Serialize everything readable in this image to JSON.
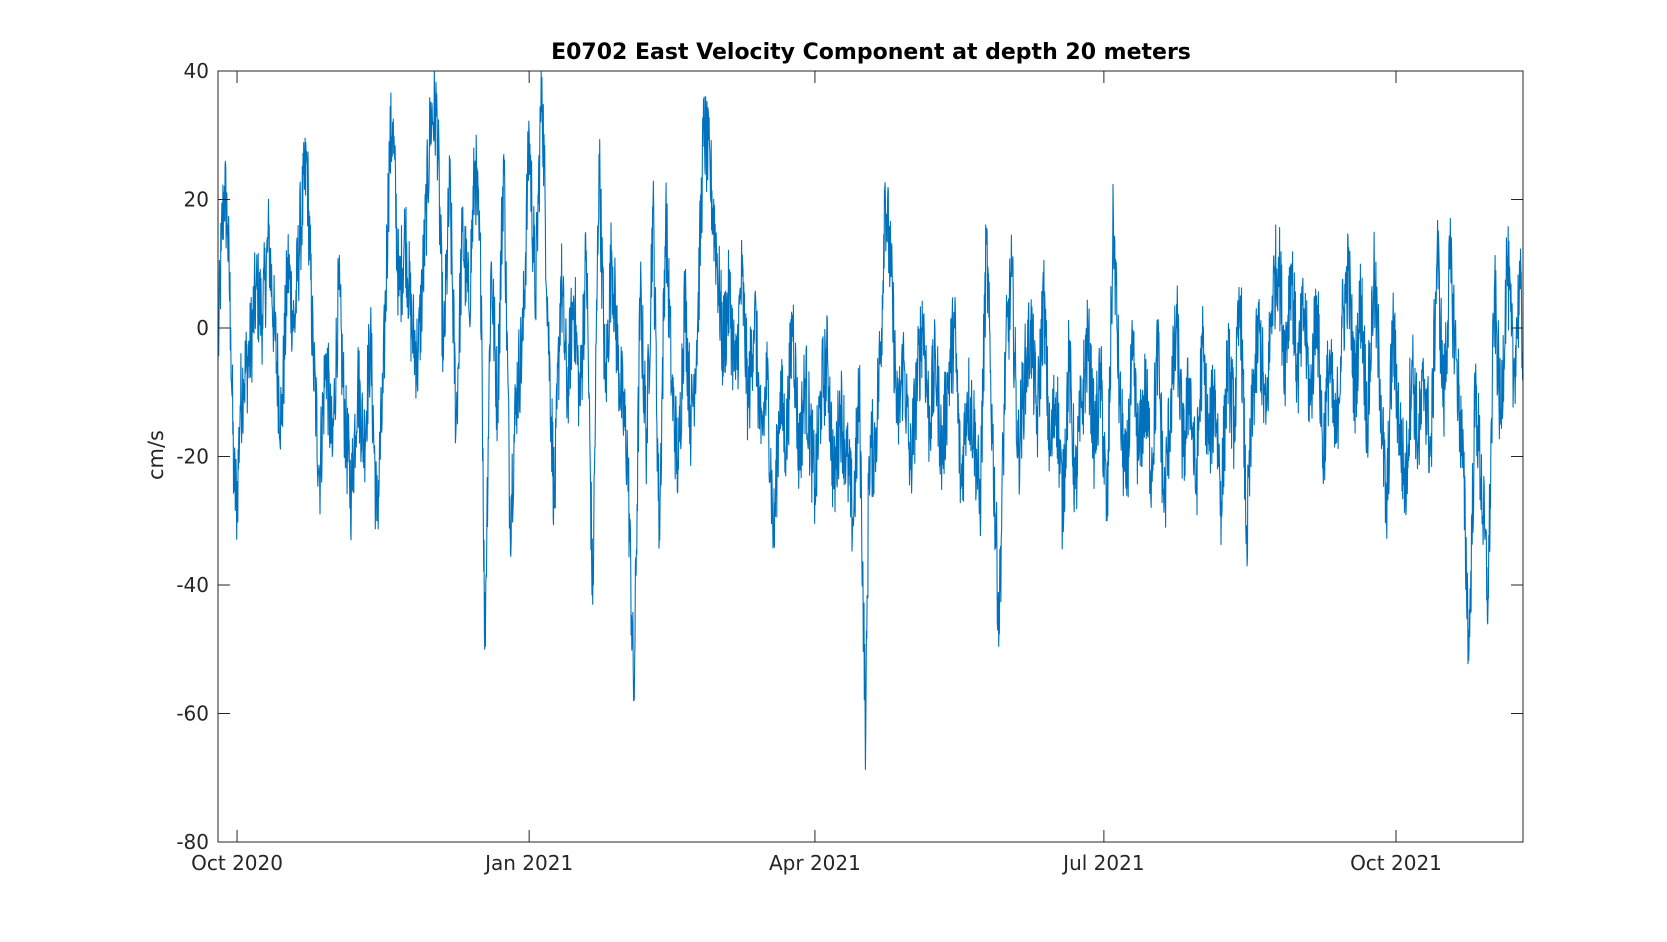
{
  "chart_data": {
    "type": "line",
    "title": "E0702 East Velocity Component at depth 20 meters",
    "xlabel": "",
    "ylabel": "cm/s",
    "xlim": [
      "2020-09-25",
      "2021-11-10"
    ],
    "ylim": [
      -80,
      40
    ],
    "grid": false,
    "legend": "none",
    "line_color": "#0072BD",
    "axis_color": "#262626",
    "x_ticks": [
      {
        "date": "2020-10-01",
        "label": "Oct 2020"
      },
      {
        "date": "2021-01-01",
        "label": "Jan 2021"
      },
      {
        "date": "2021-04-01",
        "label": "Apr 2021"
      },
      {
        "date": "2021-07-01",
        "label": "Jul 2021"
      },
      {
        "date": "2021-10-01",
        "label": "Oct 2021"
      }
    ],
    "y_ticks": [
      {
        "value": 40,
        "label": "40"
      },
      {
        "value": 20,
        "label": "20"
      },
      {
        "value": 0,
        "label": "0"
      },
      {
        "value": -20,
        "label": "-20"
      },
      {
        "value": -40,
        "label": "-40"
      },
      {
        "value": -60,
        "label": "-60"
      },
      {
        "value": -80,
        "label": "-80"
      }
    ],
    "series": [
      {
        "points": [
          [
            "2020-09-25",
            -5
          ],
          [
            "2020-09-26",
            12
          ],
          [
            "2020-09-27",
            22
          ],
          [
            "2020-09-28",
            16
          ],
          [
            "2020-09-29",
            0
          ],
          [
            "2020-09-30",
            -24
          ],
          [
            "2020-10-01",
            -27
          ],
          [
            "2020-10-02",
            -12
          ],
          [
            "2020-10-03",
            -8
          ],
          [
            "2020-10-05",
            -4
          ],
          [
            "2020-10-07",
            6
          ],
          [
            "2020-10-09",
            2
          ],
          [
            "2020-10-11",
            14
          ],
          [
            "2020-10-13",
            -2
          ],
          [
            "2020-10-15",
            -15
          ],
          [
            "2020-10-17",
            10
          ],
          [
            "2020-10-19",
            0
          ],
          [
            "2020-10-21",
            16
          ],
          [
            "2020-10-23",
            26
          ],
          [
            "2020-10-25",
            -5
          ],
          [
            "2020-10-27",
            -23
          ],
          [
            "2020-10-29",
            -4
          ],
          [
            "2020-10-31",
            -20
          ],
          [
            "2020-11-02",
            6
          ],
          [
            "2020-11-04",
            -15
          ],
          [
            "2020-11-06",
            -26
          ],
          [
            "2020-11-08",
            -8
          ],
          [
            "2020-11-10",
            -18
          ],
          [
            "2020-11-12",
            -2
          ],
          [
            "2020-11-14",
            -30
          ],
          [
            "2020-11-16",
            -10
          ],
          [
            "2020-11-18",
            27
          ],
          [
            "2020-11-19",
            32
          ],
          [
            "2020-11-21",
            5
          ],
          [
            "2020-11-23",
            15
          ],
          [
            "2020-11-25",
            0
          ],
          [
            "2020-11-27",
            -5
          ],
          [
            "2020-11-29",
            12
          ],
          [
            "2020-12-01",
            33
          ],
          [
            "2020-12-03",
            33
          ],
          [
            "2020-12-05",
            -5
          ],
          [
            "2020-12-07",
            22
          ],
          [
            "2020-12-09",
            -15
          ],
          [
            "2020-12-11",
            15
          ],
          [
            "2020-12-13",
            3
          ],
          [
            "2020-12-15",
            26
          ],
          [
            "2020-12-17",
            5
          ],
          [
            "2020-12-18",
            -50
          ],
          [
            "2020-12-20",
            10
          ],
          [
            "2020-12-22",
            -12
          ],
          [
            "2020-12-24",
            27
          ],
          [
            "2020-12-26",
            -30
          ],
          [
            "2020-12-28",
            -10
          ],
          [
            "2020-12-30",
            -2
          ],
          [
            "2021-01-01",
            30
          ],
          [
            "2021-01-03",
            5
          ],
          [
            "2021-01-05",
            39
          ],
          [
            "2021-01-07",
            0
          ],
          [
            "2021-01-09",
            -28
          ],
          [
            "2021-01-11",
            8
          ],
          [
            "2021-01-13",
            -10
          ],
          [
            "2021-01-15",
            5
          ],
          [
            "2021-01-17",
            -12
          ],
          [
            "2021-01-19",
            12
          ],
          [
            "2021-01-21",
            -43
          ],
          [
            "2021-01-23",
            27
          ],
          [
            "2021-01-25",
            -10
          ],
          [
            "2021-01-27",
            12
          ],
          [
            "2021-01-29",
            -5
          ],
          [
            "2021-02-01",
            -20
          ],
          [
            "2021-02-03",
            -58
          ],
          [
            "2021-02-05",
            5
          ],
          [
            "2021-02-07",
            -18
          ],
          [
            "2021-02-09",
            19
          ],
          [
            "2021-02-11",
            -32
          ],
          [
            "2021-02-13",
            18
          ],
          [
            "2021-02-15",
            -10
          ],
          [
            "2021-02-17",
            -22
          ],
          [
            "2021-02-19",
            5
          ],
          [
            "2021-02-21",
            -15
          ],
          [
            "2021-02-23",
            0
          ],
          [
            "2021-02-25",
            31
          ],
          [
            "2021-02-27",
            24
          ],
          [
            "2021-03-01",
            12
          ],
          [
            "2021-03-03",
            -3
          ],
          [
            "2021-03-05",
            5
          ],
          [
            "2021-03-07",
            -8
          ],
          [
            "2021-03-09",
            8
          ],
          [
            "2021-03-11",
            -12
          ],
          [
            "2021-03-13",
            3
          ],
          [
            "2021-03-15",
            -18
          ],
          [
            "2021-03-17",
            -8
          ],
          [
            "2021-03-19",
            -33
          ],
          [
            "2021-03-21",
            -10
          ],
          [
            "2021-03-23",
            -18
          ],
          [
            "2021-03-25",
            2
          ],
          [
            "2021-03-27",
            -20
          ],
          [
            "2021-03-29",
            -8
          ],
          [
            "2021-04-01",
            -25
          ],
          [
            "2021-04-03",
            -10
          ],
          [
            "2021-04-05",
            -5
          ],
          [
            "2021-04-07",
            -25
          ],
          [
            "2021-04-09",
            -12
          ],
          [
            "2021-04-11",
            -20
          ],
          [
            "2021-04-13",
            -30
          ],
          [
            "2021-04-15",
            -10
          ],
          [
            "2021-04-17",
            -64
          ],
          [
            "2021-04-18",
            -20
          ],
          [
            "2021-04-20",
            -18
          ],
          [
            "2021-04-22",
            0
          ],
          [
            "2021-04-23",
            22
          ],
          [
            "2021-04-25",
            8
          ],
          [
            "2021-04-27",
            -15
          ],
          [
            "2021-04-29",
            -5
          ],
          [
            "2021-05-01",
            -22
          ],
          [
            "2021-05-03",
            -10
          ],
          [
            "2021-05-05",
            2
          ],
          [
            "2021-05-07",
            -15
          ],
          [
            "2021-05-09",
            -5
          ],
          [
            "2021-05-11",
            -20
          ],
          [
            "2021-05-13",
            -8
          ],
          [
            "2021-05-15",
            0
          ],
          [
            "2021-05-17",
            -25
          ],
          [
            "2021-05-19",
            -10
          ],
          [
            "2021-05-21",
            -15
          ],
          [
            "2021-05-23",
            -28
          ],
          [
            "2021-05-25",
            13
          ],
          [
            "2021-05-27",
            -18
          ],
          [
            "2021-05-29",
            -46
          ],
          [
            "2021-05-31",
            -5
          ],
          [
            "2021-06-02",
            8
          ],
          [
            "2021-06-04",
            -20
          ],
          [
            "2021-06-06",
            -8
          ],
          [
            "2021-06-08",
            0
          ],
          [
            "2021-06-10",
            -15
          ],
          [
            "2021-06-12",
            5
          ],
          [
            "2021-06-14",
            -20
          ],
          [
            "2021-06-16",
            -10
          ],
          [
            "2021-06-18",
            -28
          ],
          [
            "2021-06-20",
            -5
          ],
          [
            "2021-06-22",
            -25
          ],
          [
            "2021-06-24",
            -12
          ],
          [
            "2021-06-26",
            -2
          ],
          [
            "2021-06-28",
            -18
          ],
          [
            "2021-06-30",
            -8
          ],
          [
            "2021-07-02",
            -30
          ],
          [
            "2021-07-04",
            17
          ],
          [
            "2021-07-06",
            -12
          ],
          [
            "2021-07-08",
            -25
          ],
          [
            "2021-07-10",
            -5
          ],
          [
            "2021-07-12",
            -20
          ],
          [
            "2021-07-14",
            -10
          ],
          [
            "2021-07-16",
            -22
          ],
          [
            "2021-07-18",
            -3
          ],
          [
            "2021-07-20",
            -28
          ],
          [
            "2021-07-22",
            -12
          ],
          [
            "2021-07-24",
            0
          ],
          [
            "2021-07-26",
            -20
          ],
          [
            "2021-07-28",
            -8
          ],
          [
            "2021-07-30",
            -25
          ],
          [
            "2021-08-01",
            -3
          ],
          [
            "2021-08-03",
            -18
          ],
          [
            "2021-08-05",
            -10
          ],
          [
            "2021-08-07",
            -27
          ],
          [
            "2021-08-09",
            -5
          ],
          [
            "2021-08-11",
            -15
          ],
          [
            "2021-08-13",
            5
          ],
          [
            "2021-08-15",
            -33
          ],
          [
            "2021-08-17",
            -10
          ],
          [
            "2021-08-19",
            0
          ],
          [
            "2021-08-21",
            -15
          ],
          [
            "2021-08-23",
            5
          ],
          [
            "2021-08-25",
            11
          ],
          [
            "2021-08-27",
            -5
          ],
          [
            "2021-08-29",
            10
          ],
          [
            "2021-08-31",
            -8
          ],
          [
            "2021-09-02",
            3
          ],
          [
            "2021-09-04",
            -12
          ],
          [
            "2021-09-06",
            5
          ],
          [
            "2021-09-08",
            -20
          ],
          [
            "2021-09-10",
            -5
          ],
          [
            "2021-09-12",
            -18
          ],
          [
            "2021-09-14",
            0
          ],
          [
            "2021-09-16",
            9
          ],
          [
            "2021-09-18",
            -10
          ],
          [
            "2021-09-20",
            5
          ],
          [
            "2021-09-22",
            -15
          ],
          [
            "2021-09-24",
            8
          ],
          [
            "2021-09-26",
            -8
          ],
          [
            "2021-09-28",
            -30
          ],
          [
            "2021-09-30",
            0
          ],
          [
            "2021-10-02",
            -15
          ],
          [
            "2021-10-04",
            -25
          ],
          [
            "2021-10-06",
            -5
          ],
          [
            "2021-10-08",
            -18
          ],
          [
            "2021-10-10",
            -8
          ],
          [
            "2021-10-12",
            -20
          ],
          [
            "2021-10-14",
            13
          ],
          [
            "2021-10-16",
            -12
          ],
          [
            "2021-10-18",
            10
          ],
          [
            "2021-10-20",
            -5
          ],
          [
            "2021-10-22",
            -20
          ],
          [
            "2021-10-24",
            -50
          ],
          [
            "2021-10-26",
            -10
          ],
          [
            "2021-10-28",
            -25
          ],
          [
            "2021-10-30",
            -42
          ],
          [
            "2021-11-01",
            6
          ],
          [
            "2021-11-03",
            -15
          ],
          [
            "2021-11-05",
            11
          ],
          [
            "2021-11-07",
            -8
          ],
          [
            "2021-11-09",
            7
          ],
          [
            "2021-11-10",
            -5
          ]
        ]
      }
    ]
  }
}
